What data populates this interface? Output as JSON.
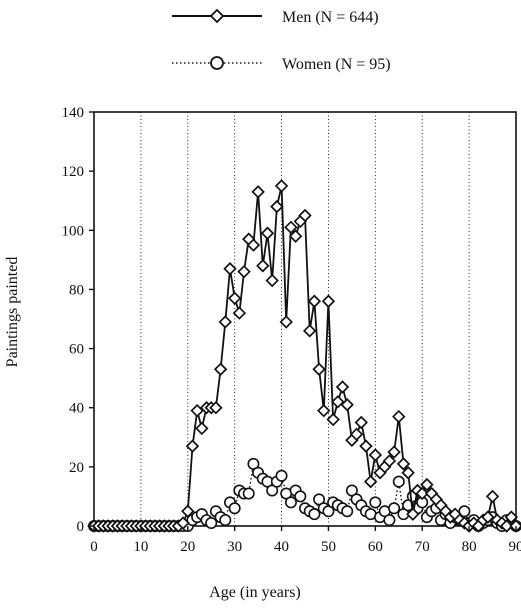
{
  "chart_data": {
    "type": "line",
    "xlabel": "Age (in years)",
    "ylabel": "Paintings painted",
    "xlim": [
      0,
      90
    ],
    "ylim": [
      0,
      140
    ],
    "x_ticks": [
      0,
      10,
      20,
      30,
      40,
      50,
      60,
      70,
      80,
      90
    ],
    "x_tick_labels": [
      "0",
      "10",
      "20",
      "30",
      "40",
      "50",
      "60",
      "70",
      "80",
      "90"
    ],
    "y_ticks": [
      0,
      20,
      40,
      60,
      80,
      100,
      120,
      140
    ],
    "y_tick_labels": [
      "0",
      "20",
      "40",
      "60",
      "80",
      "100",
      "120",
      "140"
    ],
    "grid": "vertical dotted lines at each x tick",
    "legend_placement": "top-center",
    "colors": {
      "ink": "#111111",
      "background": "#ffffff"
    },
    "series": [
      {
        "name": "Men (N = 644)",
        "line_style": "solid",
        "marker": "diamond",
        "x": [
          0,
          1,
          2,
          3,
          4,
          5,
          6,
          7,
          8,
          9,
          10,
          11,
          12,
          13,
          14,
          15,
          16,
          17,
          18,
          19,
          20,
          21,
          22,
          23,
          24,
          25,
          26,
          27,
          28,
          29,
          30,
          31,
          32,
          33,
          34,
          35,
          36,
          37,
          38,
          39,
          40,
          41,
          42,
          43,
          44,
          45,
          46,
          47,
          48,
          49,
          50,
          51,
          52,
          53,
          54,
          55,
          56,
          57,
          58,
          59,
          60,
          61,
          62,
          63,
          64,
          65,
          66,
          67,
          68,
          69,
          70,
          71,
          72,
          73,
          74,
          75,
          76,
          77,
          78,
          79,
          80,
          81,
          82,
          83,
          84,
          85,
          86,
          87,
          88,
          89,
          90
        ],
        "y": [
          0,
          0,
          0,
          0,
          0,
          0,
          0,
          0,
          0,
          0,
          0,
          0,
          0,
          0,
          0,
          0,
          0,
          0,
          0,
          1,
          5,
          27,
          39,
          33,
          40,
          40,
          40,
          53,
          69,
          87,
          77,
          72,
          86,
          97,
          95,
          113,
          88,
          99,
          83,
          108,
          115,
          69,
          101,
          98,
          103,
          105,
          66,
          76,
          53,
          39,
          76,
          36,
          42,
          47,
          41,
          29,
          31,
          35,
          27,
          15,
          24,
          18,
          20,
          22,
          25,
          37,
          21,
          18,
          4,
          12,
          11,
          14,
          11,
          9,
          7,
          5,
          3,
          4,
          2,
          1,
          0,
          1,
          0,
          2,
          3,
          10,
          2,
          1,
          0,
          3,
          0
        ]
      },
      {
        "name": "Women (N = 95)",
        "line_style": "dotted",
        "marker": "circle",
        "x": [
          0,
          1,
          2,
          3,
          4,
          5,
          6,
          7,
          8,
          9,
          10,
          11,
          12,
          13,
          14,
          15,
          16,
          17,
          18,
          19,
          20,
          21,
          22,
          23,
          24,
          25,
          26,
          27,
          28,
          29,
          30,
          31,
          32,
          33,
          34,
          35,
          36,
          37,
          38,
          39,
          40,
          41,
          42,
          43,
          44,
          45,
          46,
          47,
          48,
          49,
          50,
          51,
          52,
          53,
          54,
          55,
          56,
          57,
          58,
          59,
          60,
          61,
          62,
          63,
          64,
          65,
          66,
          67,
          68,
          69,
          70,
          71,
          72,
          73,
          74,
          75,
          76,
          77,
          78,
          79,
          80,
          81,
          82,
          83,
          84,
          85,
          86,
          87,
          88,
          89,
          90
        ],
        "y": [
          0,
          0,
          0,
          0,
          0,
          0,
          0,
          0,
          0,
          0,
          0,
          0,
          0,
          0,
          0,
          0,
          0,
          0,
          0,
          0,
          0,
          2,
          3,
          4,
          2,
          1,
          5,
          3,
          2,
          8,
          6,
          12,
          11,
          11,
          21,
          18,
          16,
          15,
          12,
          15,
          17,
          11,
          8,
          12,
          10,
          6,
          5,
          4,
          9,
          6,
          5,
          8,
          7,
          6,
          5,
          12,
          9,
          7,
          5,
          4,
          8,
          3,
          5,
          2,
          6,
          15,
          4,
          7,
          10,
          6,
          8,
          3,
          5,
          6,
          2,
          4,
          1,
          3,
          2,
          5,
          1,
          2,
          0,
          1,
          2,
          3,
          1,
          0,
          2,
          1,
          0
        ]
      }
    ]
  }
}
